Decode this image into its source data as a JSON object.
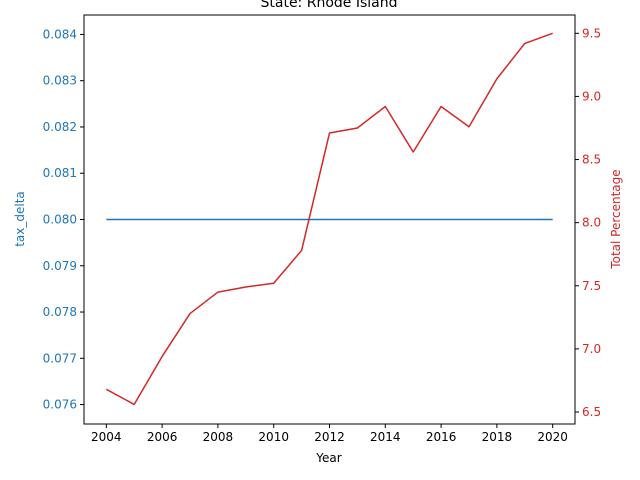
{
  "chart_data": {
    "type": "line",
    "title": "State: Rhode Island",
    "xlabel": "Year",
    "ylabel_left": "tax_delta",
    "ylabel_right": "Total Percentage",
    "xlim": [
      2003.2,
      2020.8
    ],
    "ylim_left": [
      0.07558,
      0.08442
    ],
    "ylim_right": [
      6.405,
      9.645
    ],
    "x_ticks": [
      2004,
      2006,
      2008,
      2010,
      2012,
      2014,
      2016,
      2018,
      2020
    ],
    "y_ticks_left": [
      "0.076",
      "0.077",
      "0.078",
      "0.079",
      "0.080",
      "0.081",
      "0.082",
      "0.083",
      "0.084"
    ],
    "y_ticks_right": [
      "6.5",
      "7.0",
      "7.5",
      "8.0",
      "8.5",
      "9.0",
      "9.5"
    ],
    "grid": false,
    "colors": {
      "left": "#1f77b4",
      "right": "#d62728"
    },
    "x": [
      2004,
      2005,
      2006,
      2007,
      2008,
      2009,
      2010,
      2011,
      2012,
      2013,
      2014,
      2015,
      2016,
      2017,
      2018,
      2019,
      2020
    ],
    "series": [
      {
        "axis": "left",
        "values": [
          0.08,
          0.08,
          0.08,
          0.08,
          0.08,
          0.08,
          0.08,
          0.08,
          0.08,
          0.08,
          0.08,
          0.08,
          0.08,
          0.08,
          0.08,
          0.08,
          0.08
        ]
      },
      {
        "axis": "right",
        "values": [
          6.68,
          6.56,
          6.94,
          7.28,
          7.45,
          7.49,
          7.52,
          7.78,
          8.71,
          8.75,
          8.92,
          8.56,
          8.92,
          8.76,
          9.14,
          9.42,
          9.5
        ]
      }
    ]
  }
}
